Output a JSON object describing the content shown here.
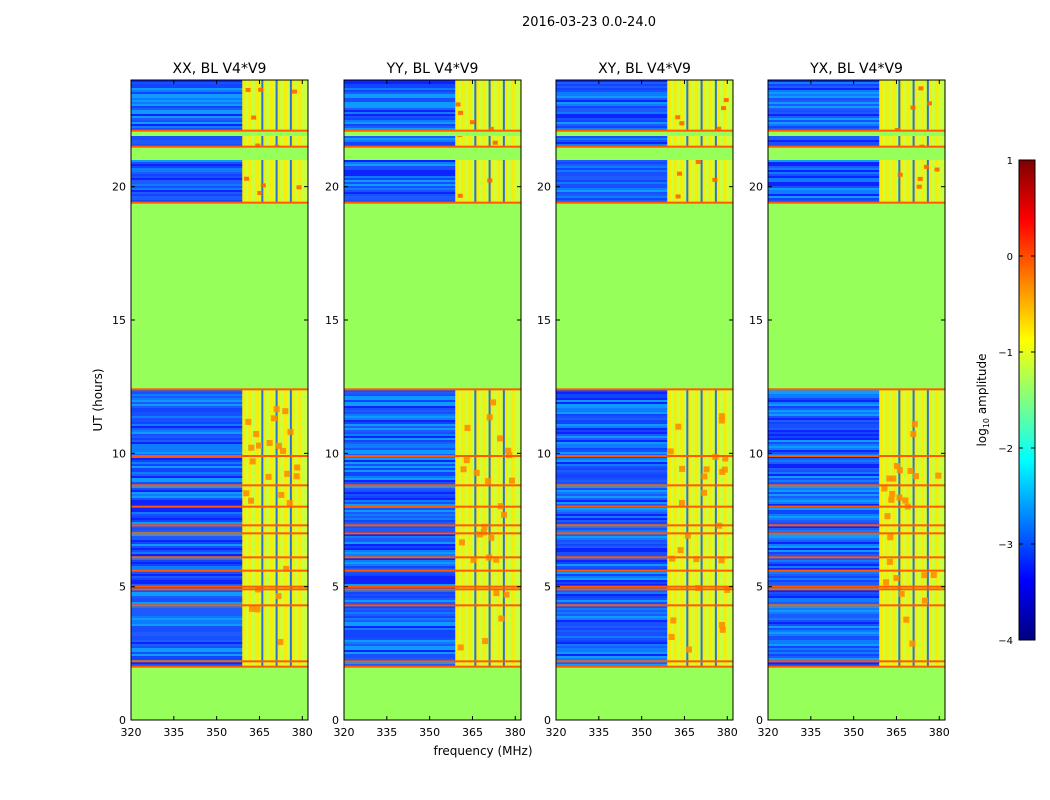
{
  "figure_title": "2016-03-23 0.0-24.0",
  "chart_data": [
    {
      "type": "heatmap",
      "title": "XX, BL V4*V9",
      "xlabel": "frequency (MHz)",
      "ylabel": "UT (hours)",
      "xlim": [
        320,
        382
      ],
      "ylim": [
        0,
        24
      ],
      "xticks": [
        "320",
        "335",
        "350",
        "365",
        "380"
      ],
      "yticks": [
        "0",
        "5",
        "10",
        "15",
        "20"
      ],
      "rfi_band_mhz": [
        359,
        382
      ],
      "flagged_ut_ranges": [
        [
          0.0,
          2.0
        ],
        [
          12.4,
          19.4
        ],
        [
          21.0,
          21.5
        ],
        [
          21.9,
          22.1
        ]
      ],
      "hot_ut_lines": [
        2.0,
        2.2,
        4.3,
        4.9,
        5.0,
        5.6,
        6.1,
        7.0,
        7.3,
        8.0,
        8.8,
        9.9,
        12.4,
        19.4,
        21.5,
        22.1
      ]
    },
    {
      "type": "heatmap",
      "title": "YY, BL V4*V9",
      "xlim": [
        320,
        382
      ],
      "ylim": [
        0,
        24
      ],
      "xticks": [
        "320",
        "335",
        "350",
        "365",
        "380"
      ],
      "yticks": [
        "0",
        "5",
        "10",
        "15",
        "20"
      ],
      "rfi_band_mhz": [
        359,
        382
      ],
      "flagged_ut_ranges": [
        [
          0.0,
          2.0
        ],
        [
          12.4,
          19.4
        ],
        [
          21.0,
          21.5
        ],
        [
          21.9,
          22.1
        ]
      ],
      "hot_ut_lines": [
        2.0,
        2.2,
        4.3,
        4.9,
        5.0,
        5.6,
        6.1,
        7.0,
        7.3,
        8.0,
        8.8,
        9.9,
        12.4,
        19.4,
        21.5,
        22.1
      ]
    },
    {
      "type": "heatmap",
      "title": "XY, BL V4*V9",
      "xlim": [
        320,
        382
      ],
      "ylim": [
        0,
        24
      ],
      "xticks": [
        "320",
        "335",
        "350",
        "365",
        "380"
      ],
      "yticks": [
        "0",
        "5",
        "10",
        "15",
        "20"
      ],
      "rfi_band_mhz": [
        359,
        382
      ],
      "flagged_ut_ranges": [
        [
          0.0,
          2.0
        ],
        [
          12.4,
          19.4
        ],
        [
          21.0,
          21.5
        ],
        [
          21.9,
          22.1
        ]
      ],
      "hot_ut_lines": [
        2.0,
        2.2,
        4.3,
        4.9,
        5.0,
        5.6,
        6.1,
        7.0,
        7.3,
        8.0,
        8.8,
        9.9,
        12.4,
        19.4,
        21.5,
        22.1
      ]
    },
    {
      "type": "heatmap",
      "title": "YX, BL V4*V9",
      "xlim": [
        320,
        382
      ],
      "ylim": [
        0,
        24
      ],
      "xticks": [
        "320",
        "335",
        "350",
        "365",
        "380"
      ],
      "yticks": [
        "0",
        "5",
        "10",
        "15",
        "20"
      ],
      "rfi_band_mhz": [
        359,
        382
      ],
      "flagged_ut_ranges": [
        [
          0.0,
          2.0
        ],
        [
          12.4,
          19.4
        ],
        [
          21.0,
          21.5
        ],
        [
          21.9,
          22.1
        ]
      ],
      "hot_ut_lines": [
        2.0,
        2.2,
        4.3,
        4.9,
        5.0,
        5.6,
        6.1,
        7.0,
        7.3,
        8.0,
        8.8,
        9.9,
        12.4,
        19.4,
        21.5,
        22.1
      ]
    }
  ],
  "colorbar": {
    "label_prefix": "log",
    "label_sub": "10",
    "label_suffix": " amplitude",
    "range": [
      -4,
      1
    ],
    "ticks": [
      "1",
      "0",
      "−1",
      "−2",
      "−3",
      "−4"
    ],
    "colormap": "jet",
    "colors": [
      "#00007f",
      "#0000ff",
      "#0080ff",
      "#00ffff",
      "#80ff80",
      "#ffff00",
      "#ff8000",
      "#ff0000",
      "#7f0000"
    ]
  }
}
